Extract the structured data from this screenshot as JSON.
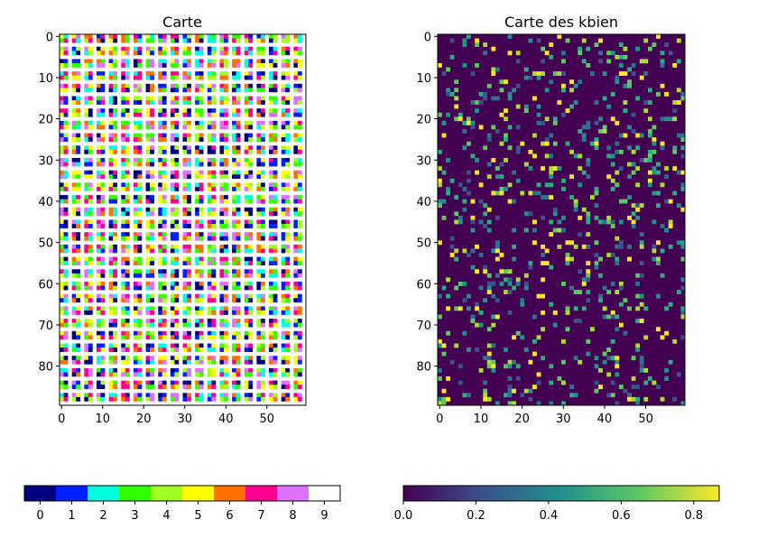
{
  "chart_data": [
    {
      "type": "heatmap",
      "title": "Carte",
      "rows": 90,
      "cols": 60,
      "x_ticks": [
        0,
        10,
        20,
        30,
        40,
        50
      ],
      "y_ticks": [
        0,
        10,
        20,
        30,
        40,
        50,
        60,
        70,
        80
      ],
      "cell_pattern": "2x2 blocks of categorical values 0-9 separated by white (9) gutter rows and columns",
      "colorbar": {
        "type": "categorical",
        "ticks": [
          "0",
          "1",
          "2",
          "3",
          "4",
          "5",
          "6",
          "7",
          "8",
          "9"
        ],
        "colors": [
          "#000080",
          "#0020ff",
          "#00ffe0",
          "#30ff00",
          "#a0ff20",
          "#ffff00",
          "#ff7000",
          "#ff0090",
          "#e070ff",
          "#ffffff"
        ]
      }
    },
    {
      "type": "heatmap",
      "title": "Carte des kbien",
      "rows": 90,
      "cols": 60,
      "x_ticks": [
        0,
        10,
        20,
        30,
        40,
        50
      ],
      "y_ticks": [
        0,
        10,
        20,
        30,
        40,
        50,
        60,
        70,
        80
      ],
      "value_range": [
        0,
        0.87
      ],
      "colorbar": {
        "type": "continuous",
        "colormap": "viridis",
        "ticks": [
          "0.0",
          "0.2",
          "0.4",
          "0.6",
          "0.8"
        ],
        "tick_values": [
          0,
          0.2,
          0.4,
          0.6,
          0.8
        ],
        "stops": [
          "#440154",
          "#3b528b",
          "#21918c",
          "#5ec962",
          "#fde725"
        ]
      }
    }
  ]
}
